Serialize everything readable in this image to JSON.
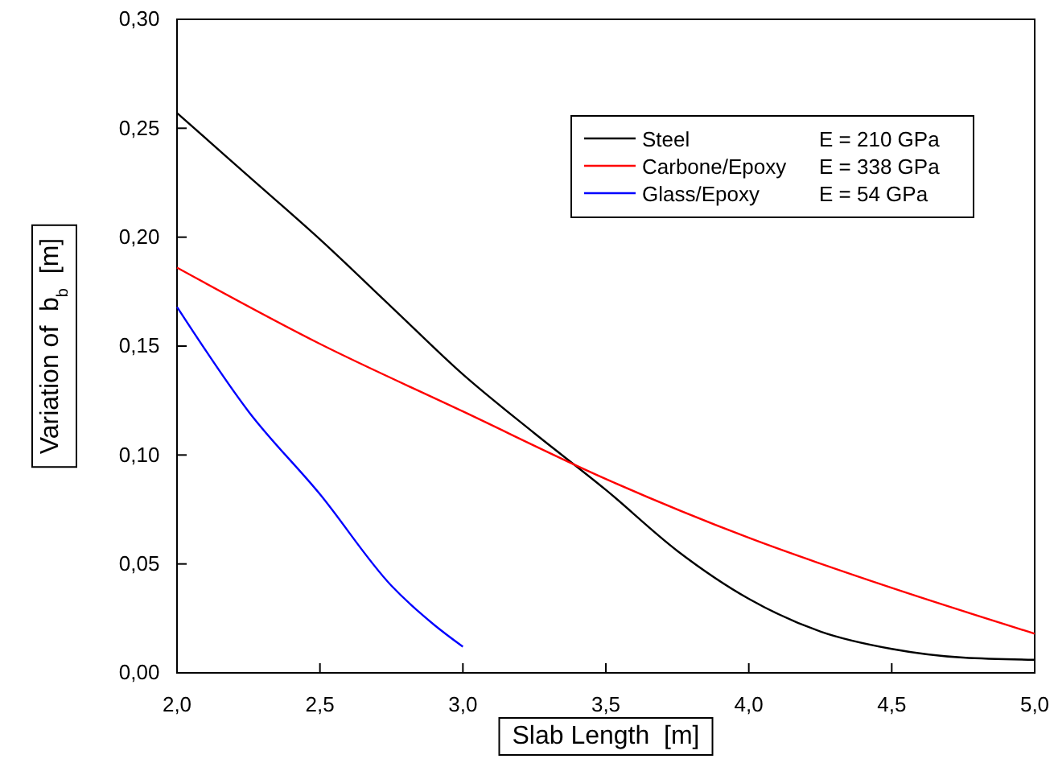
{
  "chart_data": {
    "type": "line",
    "xlabel": "Slab Length  [m]",
    "ylabel": "Variation of  b$_{b}$  [m]",
    "xlim": [
      2,
      5
    ],
    "xticks": [
      {
        "value": 2,
        "label": "2,0"
      },
      {
        "value": 2.5,
        "label": "2,5"
      },
      {
        "value": 3,
        "label": "3,0"
      },
      {
        "value": 3.5,
        "label": "3,5"
      },
      {
        "value": 4,
        "label": "4,0"
      },
      {
        "value": 4.5,
        "label": "4,5"
      },
      {
        "value": 5,
        "label": "5,0"
      }
    ],
    "ylim": [
      0,
      0.3
    ],
    "yticks": [
      {
        "value": 0,
        "label": "0,00"
      },
      {
        "value": 0.05,
        "label": "0,05"
      },
      {
        "value": 0.1,
        "label": "0,10"
      },
      {
        "value": 0.15,
        "label": "0,15"
      },
      {
        "value": 0.2,
        "label": "0,20"
      },
      {
        "value": 0.25,
        "label": "0,25"
      },
      {
        "value": 0.3,
        "label": "0,30"
      }
    ],
    "legend": "top right",
    "grid": false,
    "annotations": [
      "E = 210 GPa",
      "E = 338 GPa",
      "E = 54 GPa"
    ],
    "series": [
      {
        "name": "Steel",
        "color": "#000000",
        "x": [
          2,
          2.25,
          2.5,
          2.75,
          3,
          3.25,
          3.5,
          3.75,
          4,
          4.25,
          4.5,
          4.75,
          5
        ],
        "values": [
          0.257,
          0.228,
          0.199,
          0.168,
          0.137,
          0.11,
          0.084,
          0.056,
          0.034,
          0.019,
          0.011,
          0.007,
          0.006
        ]
      },
      {
        "name": "Carbone/Epoxy",
        "color": "#ff0000",
        "x": [
          2,
          2.5,
          3,
          3.5,
          4,
          4.5,
          5
        ],
        "values": [
          0.186,
          0.151,
          0.12,
          0.089,
          0.062,
          0.039,
          0.018
        ]
      },
      {
        "name": "Glass/Epoxy",
        "color": "#0000ff",
        "x": [
          2,
          2.25,
          2.5,
          2.75,
          2.9,
          3
        ],
        "values": [
          0.168,
          0.12,
          0.082,
          0.04,
          0.022,
          0.012
        ]
      }
    ]
  }
}
